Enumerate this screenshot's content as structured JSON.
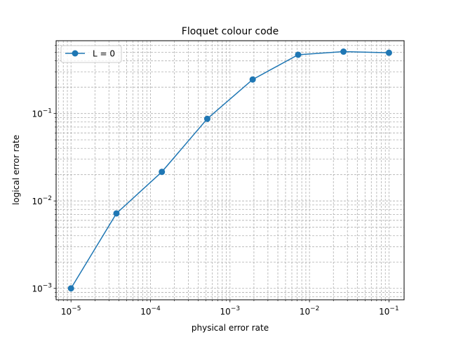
{
  "chart_data": {
    "type": "line",
    "title": "Floquet colour code",
    "xlabel": "physical error rate",
    "ylabel": "logical error rate",
    "xscale": "log",
    "yscale": "log",
    "xlim": [
      6.5e-06,
      0.155
    ],
    "ylim": [
      0.00074,
      0.68
    ],
    "grid": "major and minor, dashed",
    "legend": "top-left",
    "x_ticks": [
      {
        "base": "10",
        "exp": "−5"
      },
      {
        "base": "10",
        "exp": "−4"
      },
      {
        "base": "10",
        "exp": "−3"
      },
      {
        "base": "10",
        "exp": "−2"
      },
      {
        "base": "10",
        "exp": "−1"
      }
    ],
    "y_ticks": [
      {
        "base": "10",
        "exp": "−3"
      },
      {
        "base": "10",
        "exp": "−2"
      },
      {
        "base": "10",
        "exp": "−1"
      }
    ],
    "series": [
      {
        "name": "L = 0",
        "color": "#1f77b4",
        "marker": "circle",
        "x": [
          1e-05,
          3.73e-05,
          0.000139,
          0.000518,
          0.00193,
          0.0072,
          0.0268,
          0.1
        ],
        "y": [
          0.001,
          0.0072,
          0.0215,
          0.087,
          0.245,
          0.47,
          0.51,
          0.495
        ]
      }
    ]
  }
}
